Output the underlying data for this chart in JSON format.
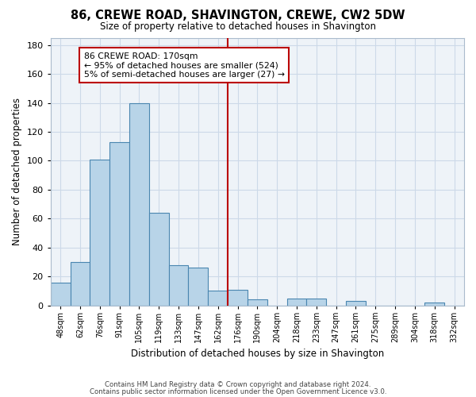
{
  "title": "86, CREWE ROAD, SHAVINGTON, CREWE, CW2 5DW",
  "subtitle": "Size of property relative to detached houses in Shavington",
  "xlabel": "Distribution of detached houses by size in Shavington",
  "ylabel": "Number of detached properties",
  "bar_labels": [
    "48sqm",
    "62sqm",
    "76sqm",
    "91sqm",
    "105sqm",
    "119sqm",
    "133sqm",
    "147sqm",
    "162sqm",
    "176sqm",
    "190sqm",
    "204sqm",
    "218sqm",
    "233sqm",
    "247sqm",
    "261sqm",
    "275sqm",
    "289sqm",
    "304sqm",
    "318sqm",
    "332sqm"
  ],
  "bar_values": [
    16,
    30,
    101,
    113,
    140,
    64,
    28,
    26,
    10,
    11,
    4,
    0,
    5,
    5,
    0,
    3,
    0,
    0,
    0,
    2,
    0
  ],
  "bar_color": "#b8d4e8",
  "bar_edge_color": "#4a86b0",
  "ylim": [
    0,
    185
  ],
  "yticks": [
    0,
    20,
    40,
    60,
    80,
    100,
    120,
    140,
    160,
    180
  ],
  "vline_index": 8.5,
  "vline_color": "#bb0000",
  "annotation_title": "86 CREWE ROAD: 170sqm",
  "annotation_line1": "← 95% of detached houses are smaller (524)",
  "annotation_line2": "5% of semi-detached houses are larger (27) →",
  "annotation_box_color": "#ffffff",
  "annotation_box_edge": "#bb0000",
  "footer1": "Contains HM Land Registry data © Crown copyright and database right 2024.",
  "footer2": "Contains public sector information licensed under the Open Government Licence v3.0.",
  "grid_color": "#ccd9e8",
  "bg_color": "#eef3f8"
}
